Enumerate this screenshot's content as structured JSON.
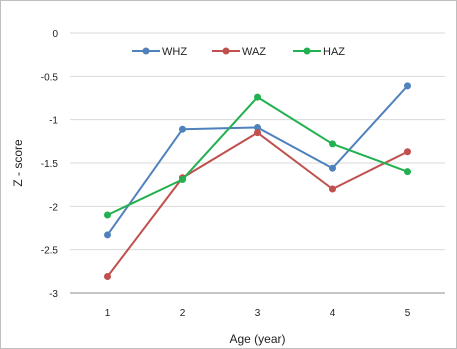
{
  "chart_data": {
    "type": "line",
    "title": "",
    "xlabel": "Age (year)",
    "ylabel": "Z - score",
    "x": [
      1,
      2,
      3,
      4,
      5
    ],
    "x_tick_labels": [
      "1",
      "2",
      "3",
      "4",
      "5"
    ],
    "ylim": [
      -3,
      0
    ],
    "y_ticks": [
      0,
      -0.5,
      -1,
      -1.5,
      -2,
      -2.5,
      -3
    ],
    "y_tick_labels": [
      "0",
      "-0.5",
      "-1",
      "-1.5",
      "-2",
      "-2.5",
      "-3"
    ],
    "grid": "horizontal",
    "legend": "top-center",
    "series": [
      {
        "name": "WHZ",
        "color": "#4f81bd",
        "values": [
          -2.33,
          -1.11,
          -1.09,
          -1.56,
          -0.61
        ]
      },
      {
        "name": "WAZ",
        "color": "#c0504d",
        "values": [
          -2.81,
          -1.67,
          -1.15,
          -1.8,
          -1.37
        ]
      },
      {
        "name": "HAZ",
        "color": "#22b050",
        "values": [
          -2.1,
          -1.69,
          -0.74,
          -1.28,
          -1.6
        ]
      }
    ]
  }
}
